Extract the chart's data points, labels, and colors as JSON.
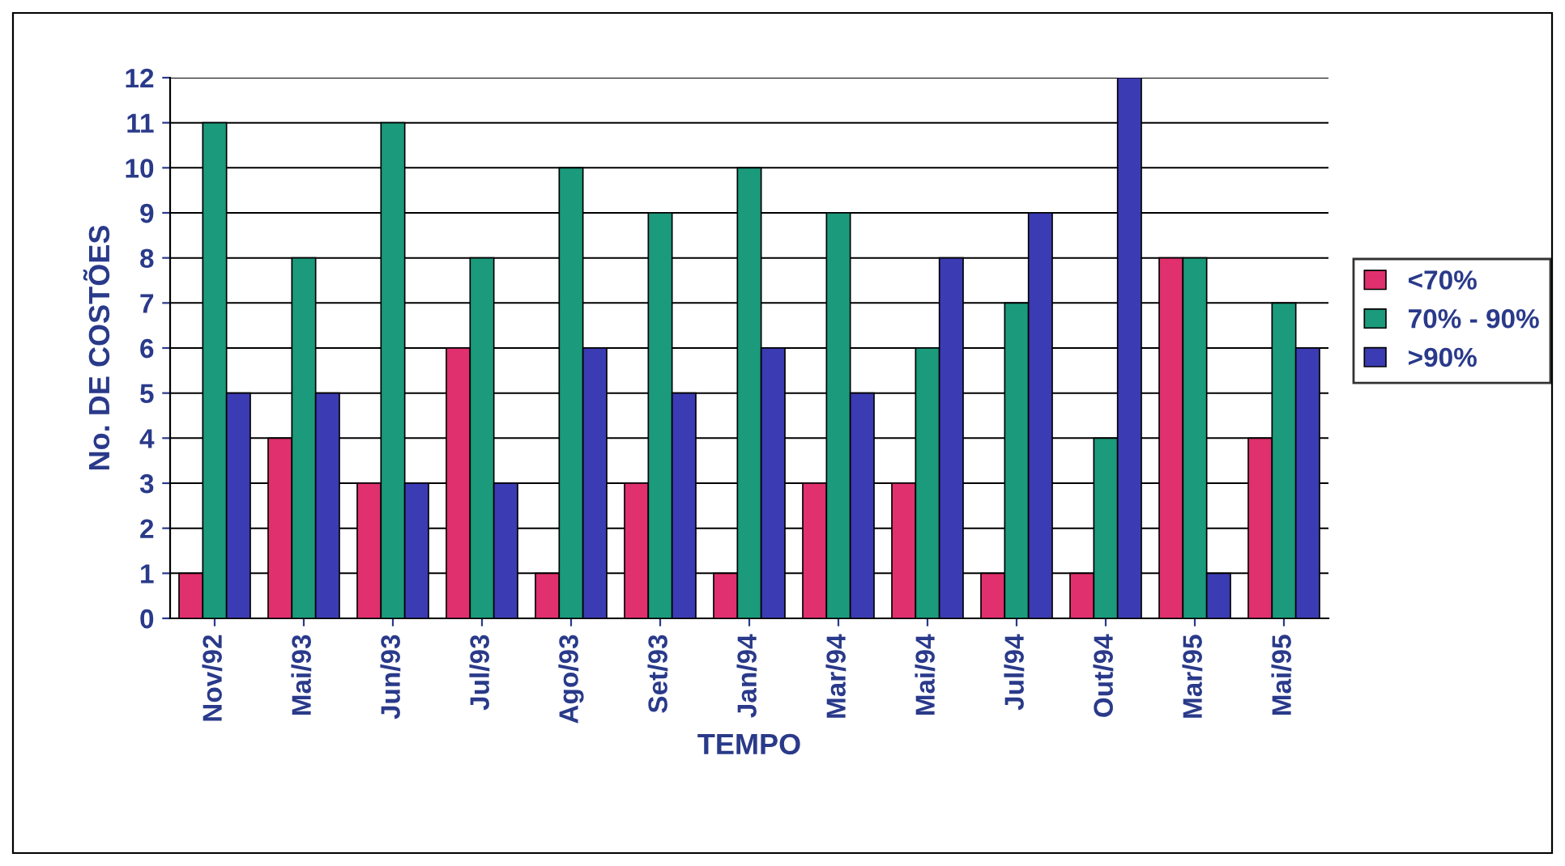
{
  "chart_data": {
    "type": "bar",
    "xlabel": "TEMPO",
    "ylabel": "No. DE COSTÕES",
    "categories": [
      "Nov/92",
      "Mai/93",
      "Jun/93",
      "Jul/93",
      "Ago/93",
      "Set/93",
      "Jan/94",
      "Mar/94",
      "Mai/94",
      "Jul/94",
      "Out/94",
      "Mar/95",
      "Mai/95"
    ],
    "series": [
      {
        "name": "<70%",
        "color": "#e0306e",
        "values": [
          1,
          4,
          3,
          6,
          1,
          3,
          1,
          3,
          3,
          1,
          1,
          8,
          4
        ]
      },
      {
        "name": "70% - 90%",
        "color": "#1b9a7c",
        "values": [
          11,
          8,
          11,
          8,
          10,
          9,
          10,
          9,
          6,
          7,
          4,
          8,
          7
        ]
      },
      {
        "name": ">90%",
        "color": "#3b3bb3",
        "values": [
          5,
          5,
          3,
          3,
          6,
          5,
          6,
          5,
          8,
          9,
          12,
          1,
          6
        ]
      }
    ],
    "ylim": [
      0,
      12
    ],
    "yticks": [
      0,
      1,
      2,
      3,
      4,
      5,
      6,
      7,
      8,
      9,
      10,
      11,
      12
    ],
    "grid": "y",
    "legend": "right"
  }
}
